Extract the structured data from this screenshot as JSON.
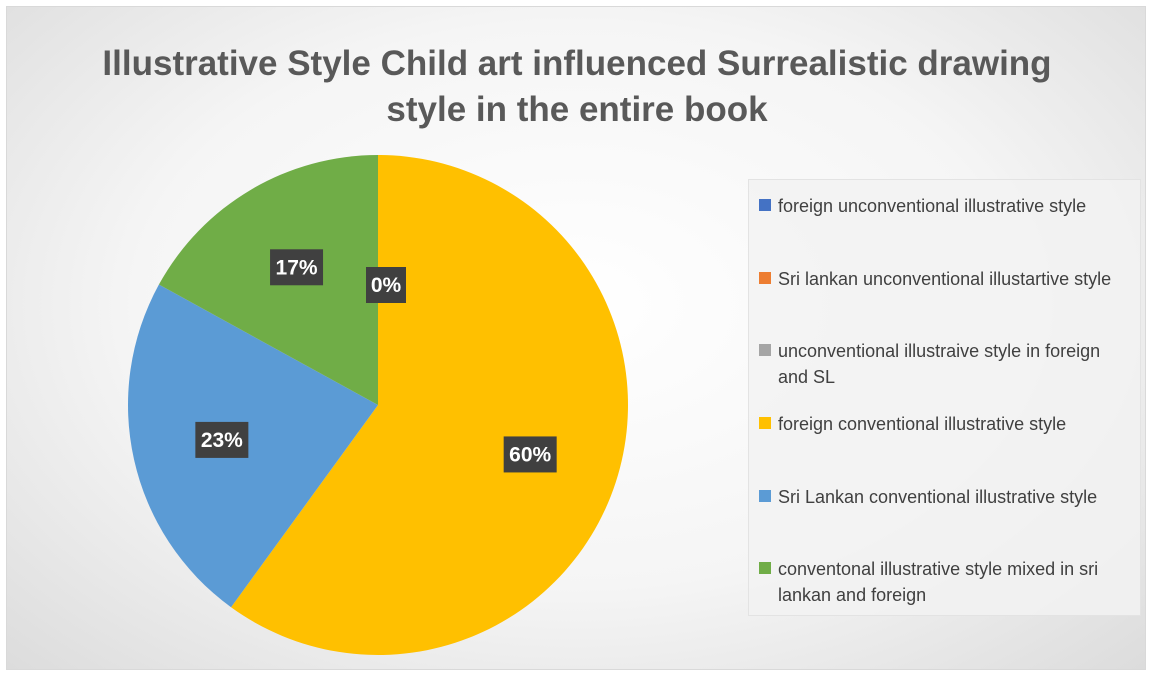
{
  "chart_data": {
    "type": "pie",
    "title": "Illustrative Style Child art influenced  Surrealistic drawing style in the entire  book",
    "slices": [
      {
        "label": "foreign unconventional illustrative style",
        "value": 0,
        "data_label": "",
        "color": "#4472C4"
      },
      {
        "label": "Sri lankan unconventional illustartive style",
        "value": 0,
        "data_label": "",
        "color": "#ED7D31"
      },
      {
        "label": "unconventional illustraive style in foreign and SL",
        "value": 0,
        "data_label": "0%",
        "color": "#A5A5A5"
      },
      {
        "label": "foreign conventional illustrative style",
        "value": 60,
        "data_label": "60%",
        "color": "#FFC000"
      },
      {
        "label": "Sri Lankan conventional illustrative style",
        "value": 23,
        "data_label": "23%",
        "color": "#5B9BD5"
      },
      {
        "label": "conventonal illustrative style mixed in sri lankan and foreign",
        "value": 17,
        "data_label": "17%",
        "color": "#70AD47"
      }
    ],
    "legend_position": "right"
  }
}
